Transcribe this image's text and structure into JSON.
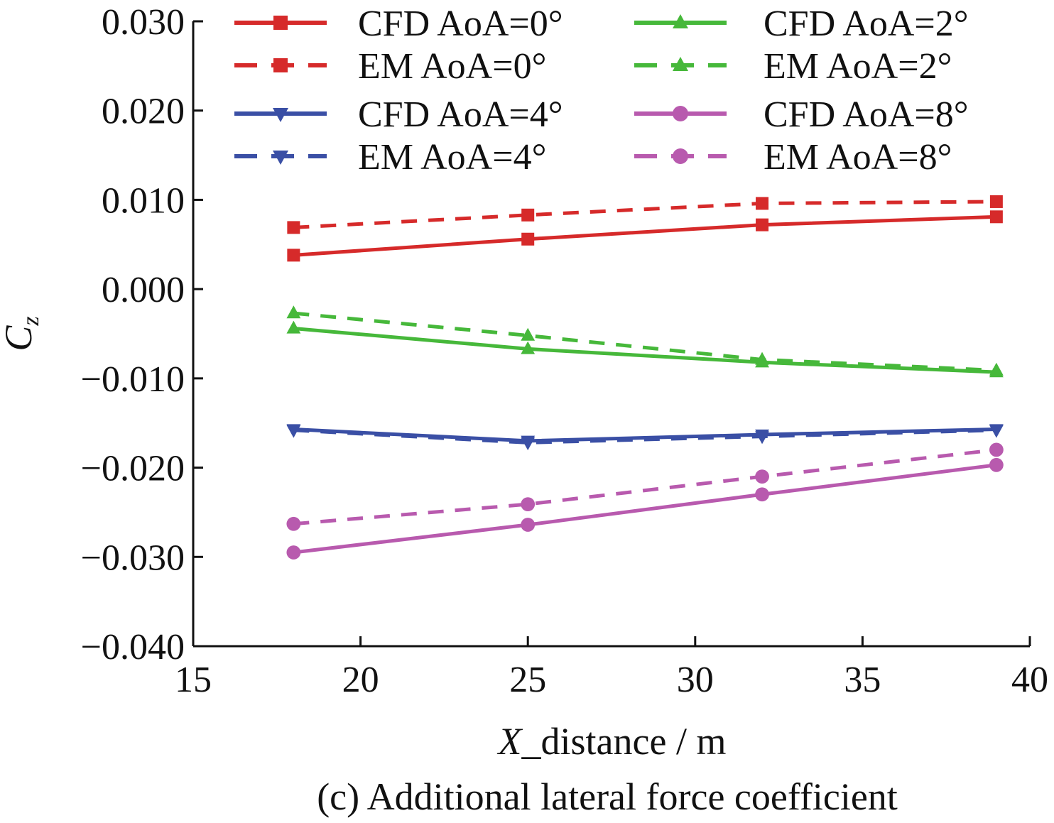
{
  "chart_data": {
    "type": "line",
    "title": "",
    "caption": "(c) Additional lateral force coefficient",
    "xlabel_italic": "X",
    "xlabel_rest": "_distance / m",
    "ylabel_main": "C",
    "ylabel_sub": "z",
    "xlim": [
      15,
      40
    ],
    "ylim": [
      -0.04,
      0.03
    ],
    "x_ticks": [
      15,
      20,
      25,
      30,
      35,
      40
    ],
    "x_tick_labels": [
      "15",
      "20",
      "25",
      "30",
      "35",
      "40"
    ],
    "y_ticks": [
      -0.04,
      -0.03,
      -0.02,
      -0.01,
      0.0,
      0.01,
      0.02,
      0.03
    ],
    "y_tick_labels": [
      "−0.040",
      "−0.030",
      "−0.020",
      "−0.010",
      "0.000",
      "0.010",
      "0.020",
      "0.030"
    ],
    "grid": false,
    "legend_position": "top",
    "x": [
      18,
      25,
      32,
      39
    ],
    "series": [
      {
        "name": "CFD AoA=0°",
        "color": "#d62a2a",
        "dash": "solid",
        "marker": "square",
        "values": [
          0.0038,
          0.0056,
          0.0072,
          0.0081
        ]
      },
      {
        "name": "EM AoA=0°",
        "color": "#d62a2a",
        "dash": "dashed",
        "marker": "square",
        "values": [
          0.0069,
          0.0083,
          0.0096,
          0.0098
        ]
      },
      {
        "name": "CFD AoA=2°",
        "color": "#46b83a",
        "dash": "solid",
        "marker": "triangle-up",
        "values": [
          -0.0044,
          -0.0067,
          -0.0082,
          -0.0093
        ]
      },
      {
        "name": "EM AoA=2°",
        "color": "#46b83a",
        "dash": "dashed",
        "marker": "triangle-up",
        "values": [
          -0.0027,
          -0.0052,
          -0.0079,
          -0.0091
        ]
      },
      {
        "name": "CFD AoA=4°",
        "color": "#3a4fa5",
        "dash": "solid",
        "marker": "triangle-down",
        "values": [
          -0.0157,
          -0.017,
          -0.0163,
          -0.0157
        ]
      },
      {
        "name": "EM AoA=4°",
        "color": "#3a4fa5",
        "dash": "dashed",
        "marker": "triangle-down",
        "values": [
          -0.0158,
          -0.0172,
          -0.0165,
          -0.0158
        ]
      },
      {
        "name": "CFD AoA=8°",
        "color": "#b85aae",
        "dash": "solid",
        "marker": "triangle-right",
        "values": [
          -0.0295,
          -0.0264,
          -0.023,
          -0.0197
        ]
      },
      {
        "name": "EM AoA=8°",
        "color": "#b85aae",
        "dash": "dashed",
        "marker": "triangle-right",
        "values": [
          -0.0263,
          -0.0241,
          -0.021,
          -0.018
        ]
      }
    ]
  }
}
